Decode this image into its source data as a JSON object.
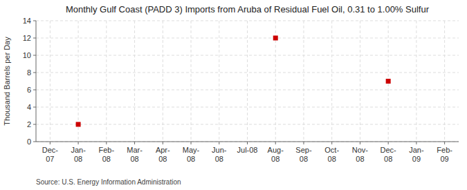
{
  "chart_data": {
    "type": "scatter",
    "title": "Monthly Gulf Coast (PADD 3) Imports from Aruba of Residual Fuel Oil, 0.31 to 1.00% Sulfur",
    "ylabel": "Thousand Barrels per Day",
    "annotation": "Source: U.S. Energy Information Administration",
    "categories": [
      "Dec-\n07",
      "Jan-\n08",
      "Feb-\n08",
      "Mar-\n08",
      "Apr-\n08",
      "May-\n08",
      "Jun-\n08",
      "Jul-08",
      "Aug-\n08",
      "Sep-\n08",
      "Oct-\n08",
      "Nov-\n08",
      "Dec-\n08",
      "Jan-\n09",
      "Feb-\n09"
    ],
    "values": [
      null,
      2.0,
      null,
      null,
      null,
      null,
      null,
      null,
      12.0,
      null,
      null,
      null,
      7.0,
      null,
      null
    ],
    "color": "#cc0000",
    "marker": "square",
    "ylim": [
      0,
      14
    ],
    "yticks": [
      0,
      2,
      4,
      6,
      8,
      10,
      12,
      14
    ],
    "grid": true
  }
}
